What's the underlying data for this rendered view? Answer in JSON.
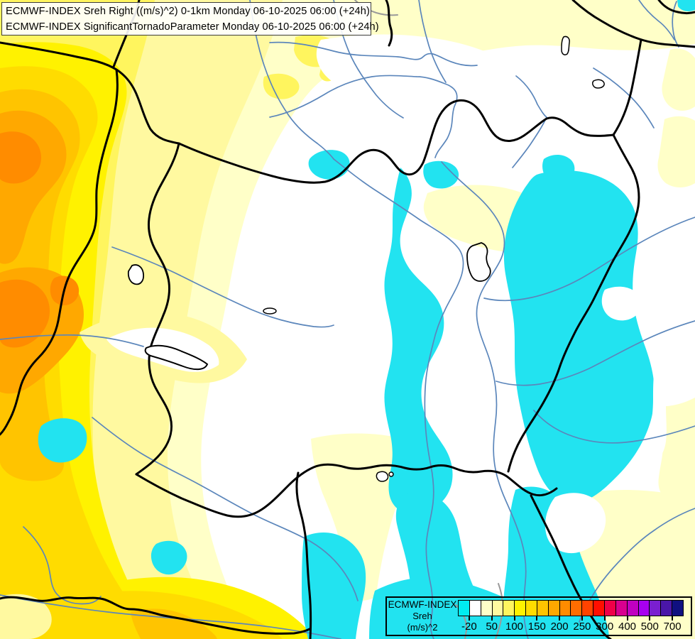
{
  "header": {
    "line1": "ECMWF-INDEX Sreh Right ((m/s)^2) 0-1km Monday 06-10-2025 06:00 (+24h)",
    "line2": "ECMWF-INDEX SignificantTornadoParameter Monday 06-10-2025 06:00 (+24h)"
  },
  "legend": {
    "title": "ECMWF-INDEX",
    "param": "Sreh",
    "unit": "(m/s)^2",
    "palette": [
      "#00EDF0",
      "#FFFFFF",
      "#FFFFC8",
      "#FFF9A0",
      "#FFF55E",
      "#FFF200",
      "#FFDC00",
      "#FFC400",
      "#FFA800",
      "#FF8C00",
      "#FF6D00",
      "#FF4300",
      "#FF0F00",
      "#EF0048",
      "#D8008F",
      "#C000C0",
      "#A800F0",
      "#7A1FD0",
      "#4A16A8",
      "#101080"
    ],
    "cell_count": 20,
    "ticks": [
      {
        "label": "-20",
        "boundary": 1
      },
      {
        "label": "50",
        "boundary": 3
      },
      {
        "label": "100",
        "boundary": 5
      },
      {
        "label": "150",
        "boundary": 7
      },
      {
        "label": "200",
        "boundary": 9
      },
      {
        "label": "250",
        "boundary": 11
      },
      {
        "label": "300",
        "boundary": 13
      },
      {
        "label": "400",
        "boundary": 15
      },
      {
        "label": "500",
        "boundary": 17
      },
      {
        "label": "700",
        "boundary": 19
      }
    ]
  },
  "map": {
    "colors": {
      "cyan": "#22E3F0",
      "border": "#000000",
      "river": "#5B86BB",
      "gray_line": "#9A9A9A",
      "lake": "#FFFFFF",
      "white": "#FFFFFF"
    }
  }
}
